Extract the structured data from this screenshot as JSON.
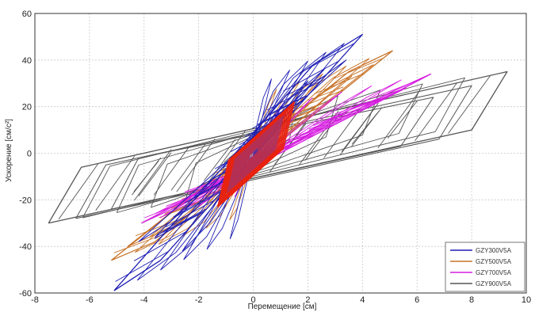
{
  "chart_data": {
    "type": "line",
    "title": "",
    "xlabel": "Перемещение [см]",
    "ylabel": "Ускорение [см/с²]",
    "xlim": [
      -8,
      10
    ],
    "ylim": [
      -60,
      60
    ],
    "xticks": [
      -8,
      -6,
      -4,
      -2,
      0,
      2,
      4,
      6,
      8,
      10
    ],
    "yticks": [
      -60,
      -40,
      -20,
      0,
      20,
      40,
      60
    ],
    "xtick_labels": [
      "-8",
      "-6",
      "-4",
      "-2",
      "0",
      "2",
      "4",
      "6",
      "8",
      "10"
    ],
    "ytick_labels": [
      "-60",
      "-40",
      "-20",
      "0",
      "20",
      "40",
      "60"
    ],
    "grid": true,
    "legend_position": "bottom-right",
    "series": [
      {
        "name": "GZY300V5A",
        "color": "#1f1fb4",
        "outer_loop": [
          [
            -5.1,
            -59
          ],
          [
            -3.4,
            -46
          ],
          [
            4.0,
            51
          ],
          [
            2.2,
            38
          ]
        ],
        "secondary_loops": [
          [
            [
              -4.2,
              -38
            ],
            [
              -3.0,
              -29
            ],
            [
              3.4,
              40
            ],
            [
              2.0,
              28
            ]
          ],
          [
            [
              -3.6,
              -36
            ],
            [
              -2.2,
              -25
            ],
            [
              2.6,
              36
            ],
            [
              1.4,
              24
            ]
          ],
          [
            [
              -2.6,
              -42
            ],
            [
              -1.6,
              -30
            ],
            [
              2.0,
              31
            ],
            [
              1.0,
              20
            ]
          ]
        ]
      },
      {
        "name": "GZY500V5A",
        "color": "#c8742a",
        "outer_loop": [
          [
            -5.2,
            -46
          ],
          [
            -3.6,
            -38
          ],
          [
            5.1,
            44
          ],
          [
            3.5,
            35
          ]
        ],
        "secondary_loops": [
          [
            [
              -4.6,
              -40
            ],
            [
              -3.2,
              -33
            ],
            [
              4.4,
              38
            ],
            [
              3.0,
              30
            ]
          ],
          [
            [
              -3.8,
              -36
            ],
            [
              -2.6,
              -29
            ],
            [
              3.6,
              33
            ],
            [
              2.4,
              25
            ]
          ]
        ]
      },
      {
        "name": "GZY700V5A",
        "color": "#d61ee0",
        "outer_loop": [
          [
            -4.1,
            -30
          ],
          [
            -2.6,
            -22
          ],
          [
            6.5,
            34
          ],
          [
            5.0,
            26
          ]
        ],
        "secondary_loops": [
          [
            [
              -3.6,
              -26
            ],
            [
              -2.2,
              -19
            ],
            [
              5.6,
              28
            ],
            [
              4.2,
              21
            ]
          ],
          [
            [
              -3.0,
              -23
            ],
            [
              -1.8,
              -16
            ],
            [
              4.8,
              24
            ],
            [
              3.4,
              18
            ]
          ]
        ]
      },
      {
        "name": "GZY900V5A",
        "color": "#555555",
        "outer_loop": [
          [
            -7.5,
            -30
          ],
          [
            -6.3,
            -6
          ],
          [
            9.3,
            35
          ],
          [
            8.0,
            10
          ]
        ],
        "secondary_loops": [
          [
            [
              -6.5,
              -28
            ],
            [
              -5.4,
              -5
            ],
            [
              8.0,
              29
            ],
            [
              6.8,
              6
            ]
          ],
          [
            [
              -5.2,
              -24
            ],
            [
              -4.2,
              -2
            ],
            [
              6.6,
              24
            ],
            [
              5.4,
              3
            ]
          ]
        ]
      },
      {
        "name": "",
        "color": "#e8220e",
        "outer_loop": [
          [
            -1.3,
            -23
          ],
          [
            -0.9,
            -3
          ],
          [
            1.5,
            22
          ],
          [
            1.1,
            2
          ]
        ],
        "secondary_loops": []
      }
    ]
  }
}
